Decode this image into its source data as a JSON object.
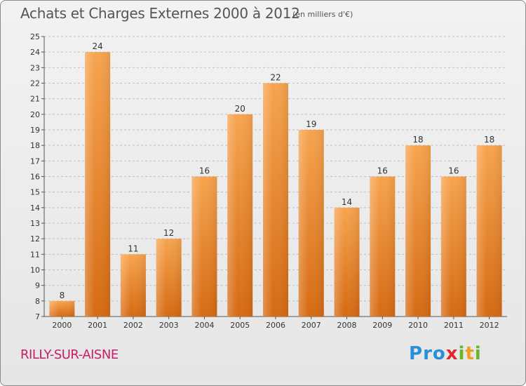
{
  "title": "Achats et Charges Externes 2000 à 2012",
  "subtitle": "(en milliers d'€)",
  "place": "RILLY-SUR-AISNE",
  "logo": {
    "text": "Proxiti",
    "letters": [
      {
        "ch": "P",
        "color": "#2a8fd6"
      },
      {
        "ch": "r",
        "color": "#2a8fd6"
      },
      {
        "ch": "o",
        "color": "#2a8fd6"
      },
      {
        "ch": "x",
        "color": "#e0262a"
      },
      {
        "ch": "i",
        "color": "#6ab42a"
      },
      {
        "ch": "t",
        "color": "#f0a020"
      },
      {
        "ch": "i",
        "color": "#6ab42a"
      }
    ]
  },
  "colors": {
    "bar_top": "#f7a44e",
    "bar_bottom": "#d66a12",
    "grid": "#bfbfbf"
  },
  "chart_data": {
    "type": "bar",
    "categories": [
      "2000",
      "2001",
      "2002",
      "2003",
      "2004",
      "2005",
      "2006",
      "2007",
      "2008",
      "2009",
      "2010",
      "2011",
      "2012"
    ],
    "values": [
      8,
      24,
      11,
      12,
      16,
      20,
      22,
      19,
      14,
      16,
      18,
      16,
      18
    ],
    "ylim": [
      7,
      25
    ],
    "yticks": [
      7,
      8,
      9,
      10,
      11,
      12,
      13,
      14,
      15,
      16,
      17,
      18,
      19,
      20,
      21,
      22,
      23,
      24,
      25
    ],
    "grid": true,
    "title": "Achats et Charges Externes 2000 à 2012",
    "xlabel": "",
    "ylabel": ""
  }
}
